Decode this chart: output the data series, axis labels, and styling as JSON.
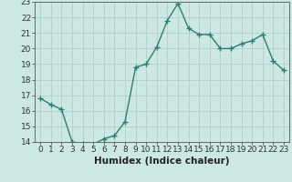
{
  "xlabel": "Humidex (Indice chaleur)",
  "x": [
    0,
    1,
    2,
    3,
    4,
    5,
    6,
    7,
    8,
    9,
    10,
    11,
    12,
    13,
    14,
    15,
    16,
    17,
    18,
    19,
    20,
    21,
    22,
    23
  ],
  "y": [
    16.8,
    16.4,
    16.1,
    14.0,
    13.9,
    13.85,
    14.2,
    14.4,
    15.3,
    18.8,
    19.0,
    20.1,
    21.8,
    22.9,
    21.3,
    20.9,
    20.9,
    20.0,
    20.0,
    20.3,
    20.5,
    20.9,
    19.2,
    18.6
  ],
  "ylim": [
    14,
    23
  ],
  "xlim": [
    -0.5,
    23.5
  ],
  "line_color": "#2e7d6e",
  "marker": "+",
  "marker_size": 4,
  "bg_color": "#cce8e4",
  "grid_color": "#aaccc8",
  "tick_label_fontsize": 6.5,
  "xlabel_fontsize": 7.5,
  "yticks": [
    14,
    15,
    16,
    17,
    18,
    19,
    20,
    21,
    22,
    23
  ],
  "grid_linewidth": 0.5,
  "line_width": 1.0
}
